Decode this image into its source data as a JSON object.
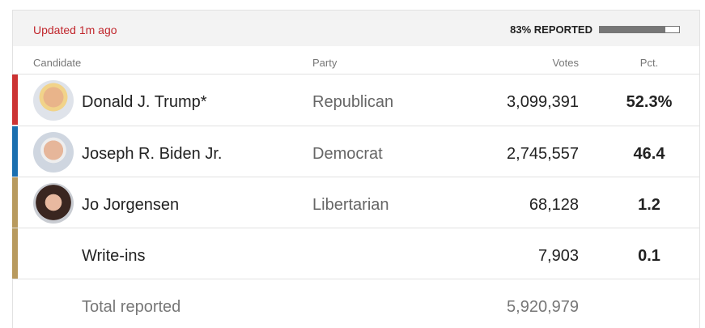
{
  "header": {
    "updated": "Updated 1m ago",
    "reported_label": "83% REPORTED",
    "reported_value": 83
  },
  "table": {
    "columns": [
      "Candidate",
      "Party",
      "Votes",
      "Pct."
    ],
    "rows": [
      [
        "Donald J. Trump*",
        "Republican",
        "3,099,391",
        "52.3%"
      ],
      [
        "Joseph R. Biden Jr.",
        "Democrat",
        "2,745,557",
        "46.4"
      ],
      [
        "Jo Jorgensen",
        "Libertarian",
        "68,128",
        "1.2"
      ],
      [
        "Write-ins",
        "",
        "7,903",
        "0.1"
      ]
    ],
    "total": [
      "Total reported",
      "5,920,979"
    ]
  }
}
